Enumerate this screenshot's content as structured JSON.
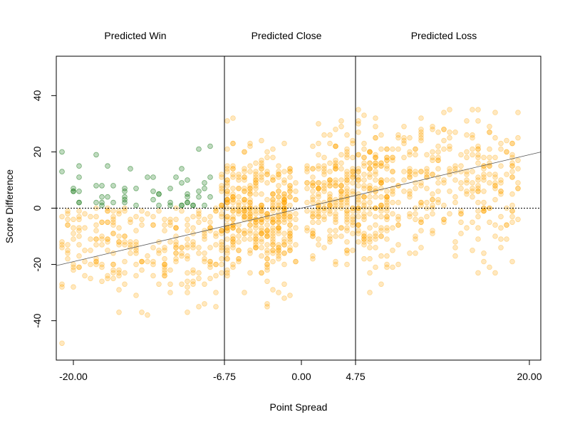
{
  "chart_data": {
    "type": "scatter",
    "title": "",
    "xlabel": "Point Spread",
    "ylabel": "Score Difference",
    "xlim": [
      -21.5,
      21.0
    ],
    "ylim": [
      -54,
      54
    ],
    "x_ticks": [
      -20.0,
      -6.75,
      0.0,
      4.75,
      20.0
    ],
    "x_tick_labels": [
      "-20.00",
      "-6.75",
      "0.00",
      "4.75",
      "20.00"
    ],
    "y_ticks": [
      -40,
      -20,
      0,
      20,
      40
    ],
    "y_tick_labels": [
      "-40",
      "-20",
      "0",
      "20",
      "40"
    ],
    "grid": false,
    "region_labels": [
      "Predicted Win",
      "Predicted Close",
      "Predicted Loss"
    ],
    "vertical_lines_x": [
      -6.75,
      4.75
    ],
    "horizontal_line_y": 0,
    "regression_line": {
      "intercept": 0.0,
      "slope": 0.95
    },
    "colors": {
      "main_points": "#FFA500",
      "highlight_points": "#1A7A1A",
      "lines": "#000000"
    },
    "point_clusters": [
      {
        "x_range": [
          -21,
          -7
        ],
        "y_mean": -10,
        "y_sd": 11,
        "count": 320,
        "highlight_rule": "y>0 and x<-6.75"
      },
      {
        "x_range": [
          -7,
          -0.5
        ],
        "y_mean": -3,
        "y_sd": 11,
        "count": 420
      },
      {
        "x_range": [
          0.5,
          8
        ],
        "y_mean": 4,
        "y_sd": 12,
        "count": 380
      },
      {
        "x_range": [
          8,
          19
        ],
        "y_mean": 8,
        "y_sd": 12,
        "count": 280
      }
    ]
  }
}
